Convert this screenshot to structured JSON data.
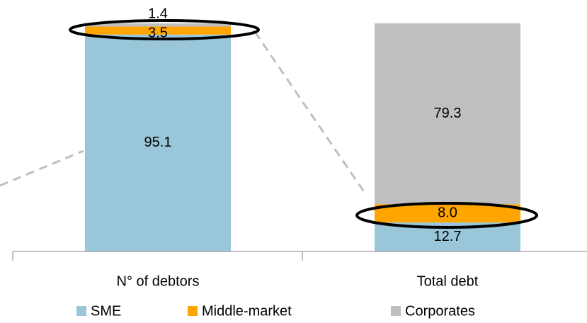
{
  "chart_data": {
    "type": "stacked_bar",
    "categories": [
      "N° of debtors",
      "Total debt"
    ],
    "series": [
      {
        "name": "SME",
        "color": "#9ac6da",
        "values": [
          95.1,
          12.7
        ]
      },
      {
        "name": "Middle-market",
        "color": "#ffa500",
        "values": [
          3.5,
          8.0
        ],
        "value_labels": [
          "3.5",
          "8.0"
        ]
      },
      {
        "name": "Corporates",
        "color": "#bfbfbf",
        "values": [
          1.4,
          79.3
        ]
      }
    ],
    "ylim": [
      0,
      100
    ]
  }
}
